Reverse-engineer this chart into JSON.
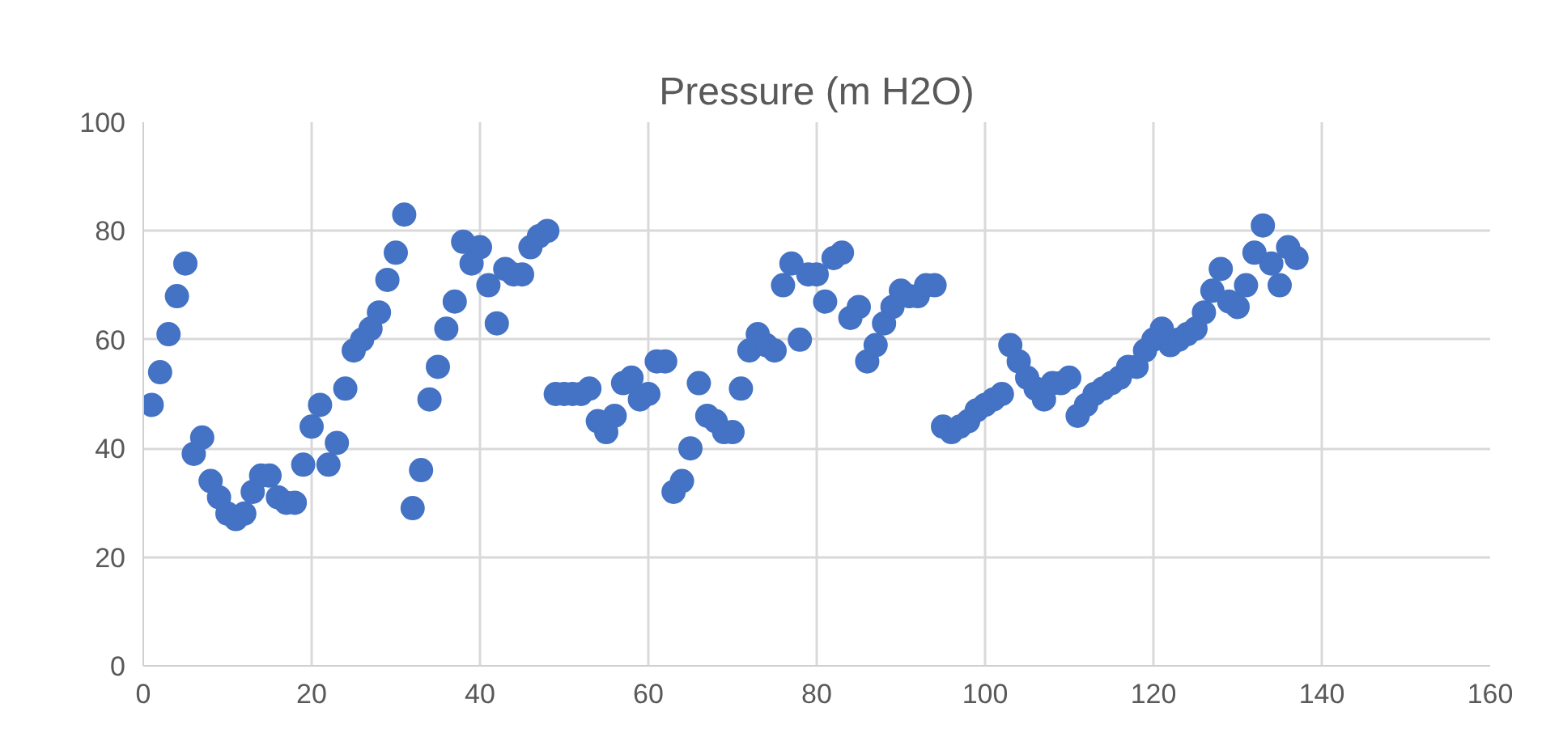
{
  "chart_data": {
    "type": "scatter",
    "title": "Pressure (m H2O)",
    "x": [
      1,
      2,
      3,
      4,
      5,
      6,
      7,
      8,
      9,
      10,
      11,
      12,
      13,
      14,
      15,
      16,
      17,
      18,
      19,
      20,
      21,
      22,
      23,
      24,
      25,
      26,
      27,
      28,
      29,
      30,
      31,
      32,
      33,
      34,
      35,
      36,
      37,
      38,
      39,
      40,
      41,
      42,
      43,
      44,
      45,
      46,
      47,
      48,
      49,
      50,
      51,
      52,
      53,
      54,
      55,
      56,
      57,
      58,
      59,
      60,
      61,
      62,
      63,
      64,
      65,
      66,
      67,
      68,
      69,
      70,
      71,
      72,
      73,
      74,
      75,
      76,
      77,
      78,
      79,
      80,
      81,
      82,
      83,
      84,
      85,
      86,
      87,
      88,
      89,
      90,
      91,
      92,
      93,
      94,
      95,
      96,
      97,
      98,
      99,
      100,
      101,
      102,
      103,
      104,
      105,
      106,
      107,
      108,
      109,
      110,
      111,
      112,
      113,
      114,
      115,
      116,
      117,
      118,
      119,
      120,
      121,
      122,
      123,
      124,
      125,
      126,
      127,
      128,
      129,
      130,
      131,
      132,
      133,
      134,
      135,
      136,
      137
    ],
    "series": [
      {
        "color": "#4472c4",
        "values": [
          48,
          54,
          61,
          68,
          74,
          39,
          42,
          34,
          31,
          28,
          27,
          28,
          32,
          35,
          35,
          31,
          30,
          30,
          37,
          44,
          48,
          37,
          41,
          51,
          58,
          60,
          62,
          65,
          71,
          76,
          83,
          29,
          36,
          49,
          55,
          62,
          67,
          78,
          74,
          77,
          70,
          63,
          73,
          72,
          72,
          77,
          79,
          80,
          50,
          50,
          50,
          50,
          51,
          45,
          43,
          46,
          52,
          53,
          49,
          50,
          56,
          56,
          32,
          34,
          40,
          52,
          46,
          45,
          43,
          43,
          51,
          58,
          61,
          59,
          58,
          70,
          74,
          60,
          72,
          72,
          67,
          75,
          76,
          64,
          66,
          56,
          59,
          63,
          66,
          69,
          68,
          68,
          70,
          70,
          44,
          43,
          44,
          45,
          47,
          48,
          49,
          50,
          59,
          56,
          53,
          51,
          49,
          52,
          52,
          53,
          46,
          48,
          50,
          51,
          52,
          53,
          55,
          55,
          58,
          60,
          62,
          59,
          60,
          61,
          62,
          65,
          69,
          73,
          67,
          66,
          70,
          76,
          81,
          74,
          70,
          77,
          75
        ]
      }
    ],
    "xlim": [
      0,
      160
    ],
    "xticks": [
      0,
      20,
      40,
      60,
      80,
      100,
      120,
      140,
      160
    ],
    "ylim": [
      0,
      100
    ],
    "yticks": [
      0,
      20,
      40,
      60,
      80,
      100
    ],
    "grid": true,
    "marker": "circle"
  }
}
